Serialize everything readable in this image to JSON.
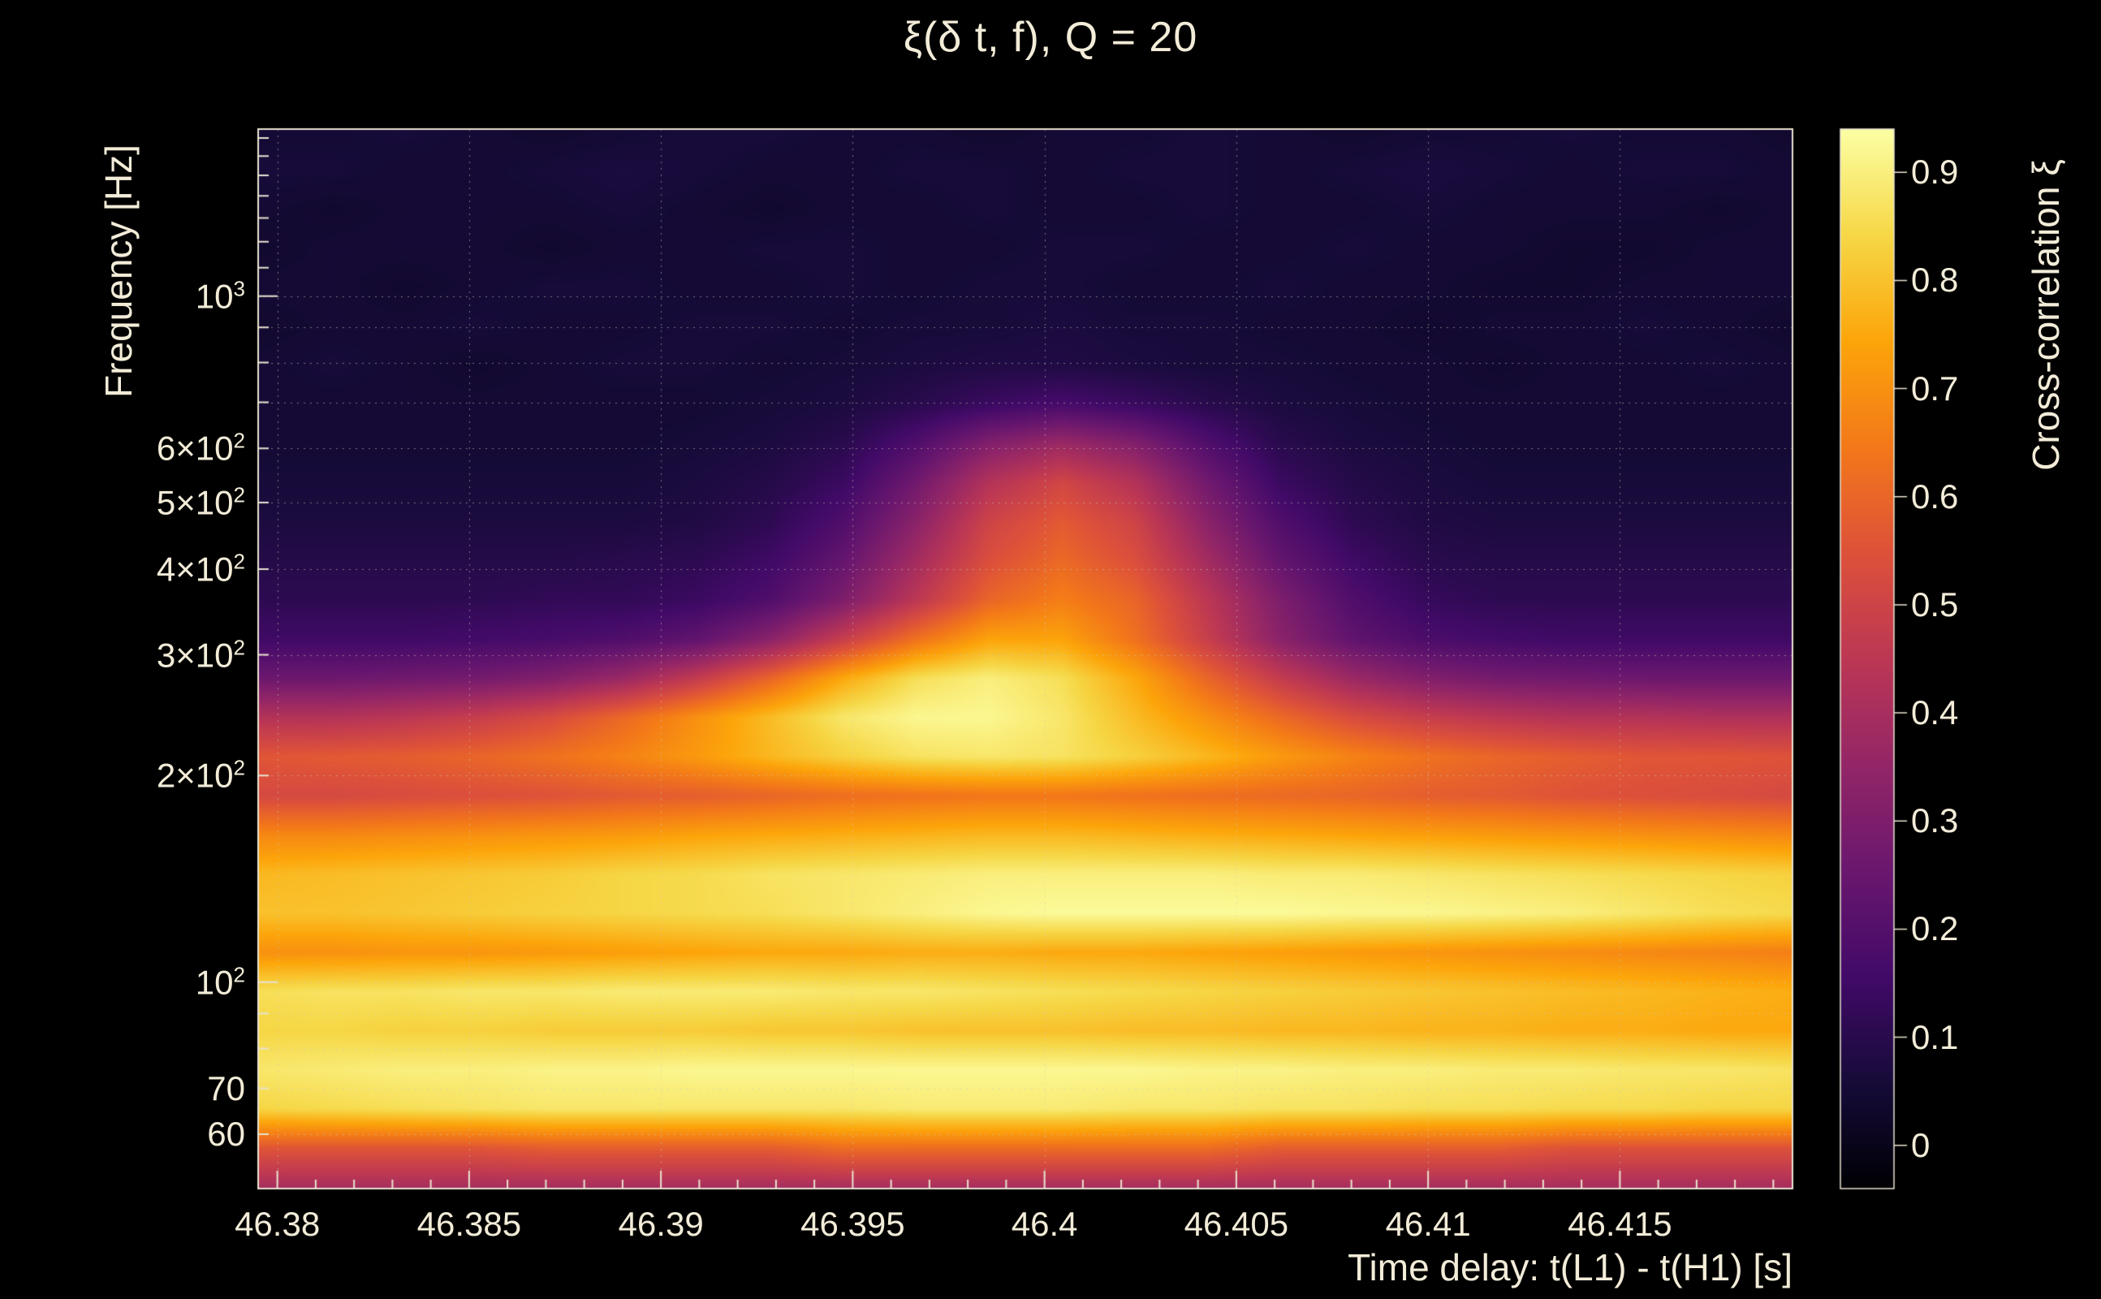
{
  "title": "ξ(δ t, f), Q = 20",
  "axes": {
    "x": {
      "label": "Time delay: t(L1) - t(H1) [s]",
      "range": [
        46.3795,
        46.4195
      ],
      "minor_step": 0.001,
      "ticks": [
        {
          "value": 46.38,
          "label": "46.38"
        },
        {
          "value": 46.385,
          "label": "46.385"
        },
        {
          "value": 46.39,
          "label": "46.39"
        },
        {
          "value": 46.395,
          "label": "46.395"
        },
        {
          "value": 46.4,
          "label": "46.4"
        },
        {
          "value": 46.405,
          "label": "46.405"
        },
        {
          "value": 46.41,
          "label": "46.41"
        },
        {
          "value": 46.415,
          "label": "46.415"
        }
      ]
    },
    "y": {
      "label": "Frequency [Hz]",
      "scale": "log",
      "range": [
        50.0,
        1751.7
      ],
      "ticks": [
        {
          "value": 1000,
          "base": "10",
          "sup": "3"
        },
        {
          "value": 600,
          "base": "6×10",
          "sup": "2"
        },
        {
          "value": 500,
          "base": "5×10",
          "sup": "2"
        },
        {
          "value": 400,
          "base": "4×10",
          "sup": "2"
        },
        {
          "value": 300,
          "base": "3×10",
          "sup": "2"
        },
        {
          "value": 200,
          "base": "2×10",
          "sup": "2"
        },
        {
          "value": 100,
          "base": "10",
          "sup": "2"
        },
        {
          "value": 70,
          "base": "70",
          "sup": ""
        },
        {
          "value": 60,
          "base": "60",
          "sup": ""
        }
      ],
      "grid_values": [
        60,
        70,
        80,
        90,
        100,
        200,
        300,
        400,
        500,
        600,
        700,
        800,
        900,
        1000
      ],
      "tick_values": [
        50,
        60,
        70,
        80,
        90,
        100,
        200,
        300,
        400,
        500,
        600,
        700,
        800,
        900,
        1000,
        1100,
        1200,
        1300,
        1400,
        1500,
        1600,
        1700
      ]
    }
  },
  "colorbar": {
    "label": "Cross-correlation ξ",
    "domain": [
      -0.04,
      0.94
    ],
    "ticks": [
      {
        "value": 0.9,
        "label": "0.9"
      },
      {
        "value": 0.8,
        "label": "0.8"
      },
      {
        "value": 0.7,
        "label": "0.7"
      },
      {
        "value": 0.6,
        "label": "0.6"
      },
      {
        "value": 0.5,
        "label": "0.5"
      },
      {
        "value": 0.4,
        "label": "0.4"
      },
      {
        "value": 0.3,
        "label": "0.3"
      },
      {
        "value": 0.2,
        "label": "0.2"
      },
      {
        "value": 0.1,
        "label": "0.1"
      },
      {
        "value": 0,
        "label": "0"
      }
    ],
    "colormap": [
      "#000004",
      "#160b39",
      "#420a68",
      "#6a176e",
      "#932667",
      "#bc3754",
      "#dd513a",
      "#f37819",
      "#fca50a",
      "#f6d746",
      "#fcffa4"
    ]
  },
  "colors": {
    "background": "#000000",
    "text": "#f2ecd8",
    "grid": "#cfc8b8",
    "frame": "#e9e2cf"
  },
  "chart_data": {
    "type": "heatmap",
    "title": "ξ(δ t, f), Q = 20",
    "xlabel": "Time delay: t(L1) - t(H1) [s]",
    "ylabel": "Frequency [Hz]",
    "zlabel": "Cross-correlation ξ",
    "x_range": [
      46.3795,
      46.4195
    ],
    "x_tick_labels": [
      "46.38",
      "46.385",
      "46.39",
      "46.395",
      "46.4",
      "46.405",
      "46.41",
      "46.415"
    ],
    "y_tick_labels": [
      "10³",
      "6×10²",
      "5×10²",
      "4×10²",
      "3×10²",
      "2×10²",
      "10²",
      "70",
      "60"
    ],
    "z_tick_labels": [
      "0",
      "0.1",
      "0.2",
      "0.3",
      "0.4",
      "0.5",
      "0.6",
      "0.7",
      "0.8",
      "0.9"
    ],
    "y_scale": "log",
    "z_domain": [
      -0.04,
      0.94
    ],
    "x_values": [
      46.3795,
      46.3814,
      46.3833,
      46.3852,
      46.3871,
      46.389,
      46.3909,
      46.3928,
      46.3947,
      46.3966,
      46.3986,
      46.4005,
      46.4024,
      46.4043,
      46.4062,
      46.4081,
      46.41,
      46.4119,
      46.4138,
      46.4157,
      46.4176,
      46.4195
    ],
    "y_freqs_hz": [
      50.0,
      57.0,
      65.1,
      74.2,
      84.7,
      96.6,
      110.2,
      125.7,
      143.4,
      163.6,
      186.6,
      212.9,
      242.9,
      277.1,
      316.1,
      360.6,
      411.4,
      469.3,
      535.4,
      610.8,
      696.7,
      794.8,
      906.7,
      1034.3,
      1179.9,
      1346.0,
      1535.5,
      1751.7
    ],
    "values": [
      [
        0.4,
        0.4,
        0.4,
        0.4,
        0.4,
        0.4,
        0.4,
        0.4,
        0.4,
        0.4,
        0.4,
        0.4,
        0.4,
        0.4,
        0.4,
        0.4,
        0.4,
        0.4,
        0.4,
        0.4,
        0.4,
        0.4
      ],
      [
        0.56,
        0.56,
        0.56,
        0.56,
        0.58,
        0.58,
        0.58,
        0.58,
        0.62,
        0.62,
        0.62,
        0.62,
        0.62,
        0.62,
        0.58,
        0.58,
        0.58,
        0.58,
        0.55,
        0.55,
        0.55,
        0.55
      ],
      [
        0.84,
        0.85,
        0.86,
        0.87,
        0.88,
        0.88,
        0.88,
        0.88,
        0.88,
        0.89,
        0.89,
        0.89,
        0.88,
        0.88,
        0.87,
        0.87,
        0.86,
        0.86,
        0.85,
        0.85,
        0.84,
        0.84
      ],
      [
        0.88,
        0.89,
        0.9,
        0.9,
        0.91,
        0.91,
        0.92,
        0.92,
        0.92,
        0.92,
        0.92,
        0.92,
        0.92,
        0.91,
        0.91,
        0.9,
        0.9,
        0.89,
        0.89,
        0.88,
        0.88,
        0.87
      ],
      [
        0.84,
        0.84,
        0.83,
        0.83,
        0.82,
        0.82,
        0.82,
        0.81,
        0.81,
        0.8,
        0.8,
        0.8,
        0.79,
        0.79,
        0.78,
        0.78,
        0.77,
        0.77,
        0.76,
        0.76,
        0.75,
        0.75
      ],
      [
        0.86,
        0.87,
        0.87,
        0.88,
        0.88,
        0.89,
        0.89,
        0.89,
        0.88,
        0.88,
        0.87,
        0.86,
        0.85,
        0.84,
        0.83,
        0.82,
        0.81,
        0.8,
        0.79,
        0.78,
        0.77,
        0.76
      ],
      [
        0.7,
        0.7,
        0.71,
        0.71,
        0.72,
        0.73,
        0.74,
        0.75,
        0.75,
        0.76,
        0.76,
        0.75,
        0.75,
        0.74,
        0.73,
        0.72,
        0.71,
        0.7,
        0.69,
        0.68,
        0.67,
        0.66
      ],
      [
        0.8,
        0.8,
        0.81,
        0.82,
        0.83,
        0.84,
        0.85,
        0.86,
        0.88,
        0.9,
        0.92,
        0.93,
        0.93,
        0.93,
        0.93,
        0.92,
        0.92,
        0.91,
        0.9,
        0.88,
        0.86,
        0.85
      ],
      [
        0.78,
        0.79,
        0.8,
        0.81,
        0.82,
        0.84,
        0.85,
        0.87,
        0.88,
        0.89,
        0.9,
        0.9,
        0.9,
        0.9,
        0.89,
        0.89,
        0.88,
        0.87,
        0.86,
        0.85,
        0.84,
        0.83
      ],
      [
        0.68,
        0.68,
        0.69,
        0.7,
        0.71,
        0.72,
        0.74,
        0.75,
        0.76,
        0.77,
        0.78,
        0.78,
        0.77,
        0.76,
        0.75,
        0.74,
        0.73,
        0.72,
        0.71,
        0.7,
        0.69,
        0.68
      ],
      [
        0.52,
        0.52,
        0.53,
        0.54,
        0.55,
        0.57,
        0.58,
        0.6,
        0.62,
        0.63,
        0.64,
        0.64,
        0.63,
        0.62,
        0.61,
        0.6,
        0.58,
        0.57,
        0.55,
        0.54,
        0.53,
        0.52
      ],
      [
        0.56,
        0.57,
        0.58,
        0.6,
        0.63,
        0.67,
        0.72,
        0.78,
        0.83,
        0.87,
        0.88,
        0.87,
        0.83,
        0.78,
        0.72,
        0.67,
        0.63,
        0.6,
        0.58,
        0.56,
        0.56,
        0.55
      ],
      [
        0.43,
        0.43,
        0.45,
        0.48,
        0.53,
        0.61,
        0.7,
        0.79,
        0.88,
        0.92,
        0.92,
        0.88,
        0.79,
        0.7,
        0.61,
        0.53,
        0.48,
        0.45,
        0.43,
        0.43,
        0.42,
        0.42
      ],
      [
        0.26,
        0.26,
        0.27,
        0.28,
        0.31,
        0.37,
        0.47,
        0.6,
        0.75,
        0.86,
        0.9,
        0.86,
        0.75,
        0.6,
        0.47,
        0.37,
        0.31,
        0.28,
        0.27,
        0.26,
        0.26,
        0.26
      ],
      [
        0.15,
        0.15,
        0.15,
        0.16,
        0.17,
        0.19,
        0.23,
        0.33,
        0.48,
        0.63,
        0.74,
        0.74,
        0.63,
        0.48,
        0.33,
        0.23,
        0.18,
        0.16,
        0.15,
        0.15,
        0.15,
        0.15
      ],
      [
        0.11,
        0.11,
        0.11,
        0.11,
        0.12,
        0.12,
        0.14,
        0.19,
        0.3,
        0.45,
        0.6,
        0.66,
        0.6,
        0.45,
        0.3,
        0.19,
        0.13,
        0.11,
        0.11,
        0.11,
        0.11,
        0.11
      ],
      [
        0.09,
        0.09,
        0.09,
        0.09,
        0.09,
        0.1,
        0.11,
        0.15,
        0.24,
        0.39,
        0.54,
        0.61,
        0.54,
        0.39,
        0.24,
        0.15,
        0.1,
        0.09,
        0.09,
        0.09,
        0.09,
        0.09
      ],
      [
        0.07,
        0.07,
        0.07,
        0.07,
        0.07,
        0.07,
        0.08,
        0.11,
        0.19,
        0.33,
        0.5,
        0.57,
        0.5,
        0.33,
        0.19,
        0.11,
        0.08,
        0.07,
        0.07,
        0.07,
        0.07,
        0.07
      ],
      [
        0.06,
        0.06,
        0.06,
        0.06,
        0.06,
        0.06,
        0.07,
        0.09,
        0.14,
        0.27,
        0.43,
        0.51,
        0.43,
        0.27,
        0.14,
        0.09,
        0.07,
        0.06,
        0.06,
        0.06,
        0.06,
        0.06
      ],
      [
        0.05,
        0.05,
        0.05,
        0.05,
        0.05,
        0.05,
        0.06,
        0.07,
        0.1,
        0.19,
        0.31,
        0.37,
        0.31,
        0.19,
        0.1,
        0.07,
        0.06,
        0.05,
        0.05,
        0.05,
        0.05,
        0.05
      ],
      [
        0.05,
        0.05,
        0.05,
        0.05,
        0.05,
        0.05,
        0.05,
        0.06,
        0.07,
        0.1,
        0.14,
        0.17,
        0.14,
        0.1,
        0.07,
        0.06,
        0.05,
        0.05,
        0.05,
        0.05,
        0.05,
        0.05
      ],
      [
        0.05,
        0.06,
        0.05,
        0.04,
        0.05,
        0.06,
        0.06,
        0.05,
        0.06,
        0.07,
        0.08,
        0.08,
        0.07,
        0.06,
        0.06,
        0.05,
        0.05,
        0.04,
        0.05,
        0.05,
        0.06,
        0.05
      ],
      [
        0.04,
        0.05,
        0.05,
        0.06,
        0.05,
        0.05,
        0.06,
        0.06,
        0.05,
        0.06,
        0.06,
        0.07,
        0.06,
        0.06,
        0.05,
        0.05,
        0.04,
        0.05,
        0.05,
        0.06,
        0.05,
        0.04
      ],
      [
        0.05,
        0.05,
        0.04,
        0.05,
        0.06,
        0.06,
        0.05,
        0.05,
        0.06,
        0.05,
        0.06,
        0.06,
        0.05,
        0.05,
        0.06,
        0.05,
        0.05,
        0.04,
        0.04,
        0.05,
        0.05,
        0.05
      ],
      [
        0.04,
        0.05,
        0.05,
        0.05,
        0.04,
        0.05,
        0.05,
        0.06,
        0.06,
        0.05,
        0.05,
        0.06,
        0.06,
        0.05,
        0.05,
        0.06,
        0.05,
        0.05,
        0.04,
        0.04,
        0.05,
        0.05
      ],
      [
        0.05,
        0.04,
        0.05,
        0.05,
        0.05,
        0.06,
        0.05,
        0.04,
        0.05,
        0.05,
        0.06,
        0.05,
        0.05,
        0.06,
        0.05,
        0.05,
        0.06,
        0.05,
        0.05,
        0.05,
        0.04,
        0.05
      ],
      [
        0.06,
        0.06,
        0.05,
        0.05,
        0.06,
        0.07,
        0.06,
        0.05,
        0.05,
        0.06,
        0.06,
        0.05,
        0.06,
        0.06,
        0.05,
        0.06,
        0.07,
        0.06,
        0.05,
        0.06,
        0.06,
        0.05
      ],
      [
        0.05,
        0.05,
        0.06,
        0.05,
        0.04,
        0.05,
        0.06,
        0.06,
        0.05,
        0.05,
        0.04,
        0.05,
        0.05,
        0.06,
        0.05,
        0.04,
        0.05,
        0.05,
        0.06,
        0.05,
        0.05,
        0.04
      ]
    ]
  }
}
